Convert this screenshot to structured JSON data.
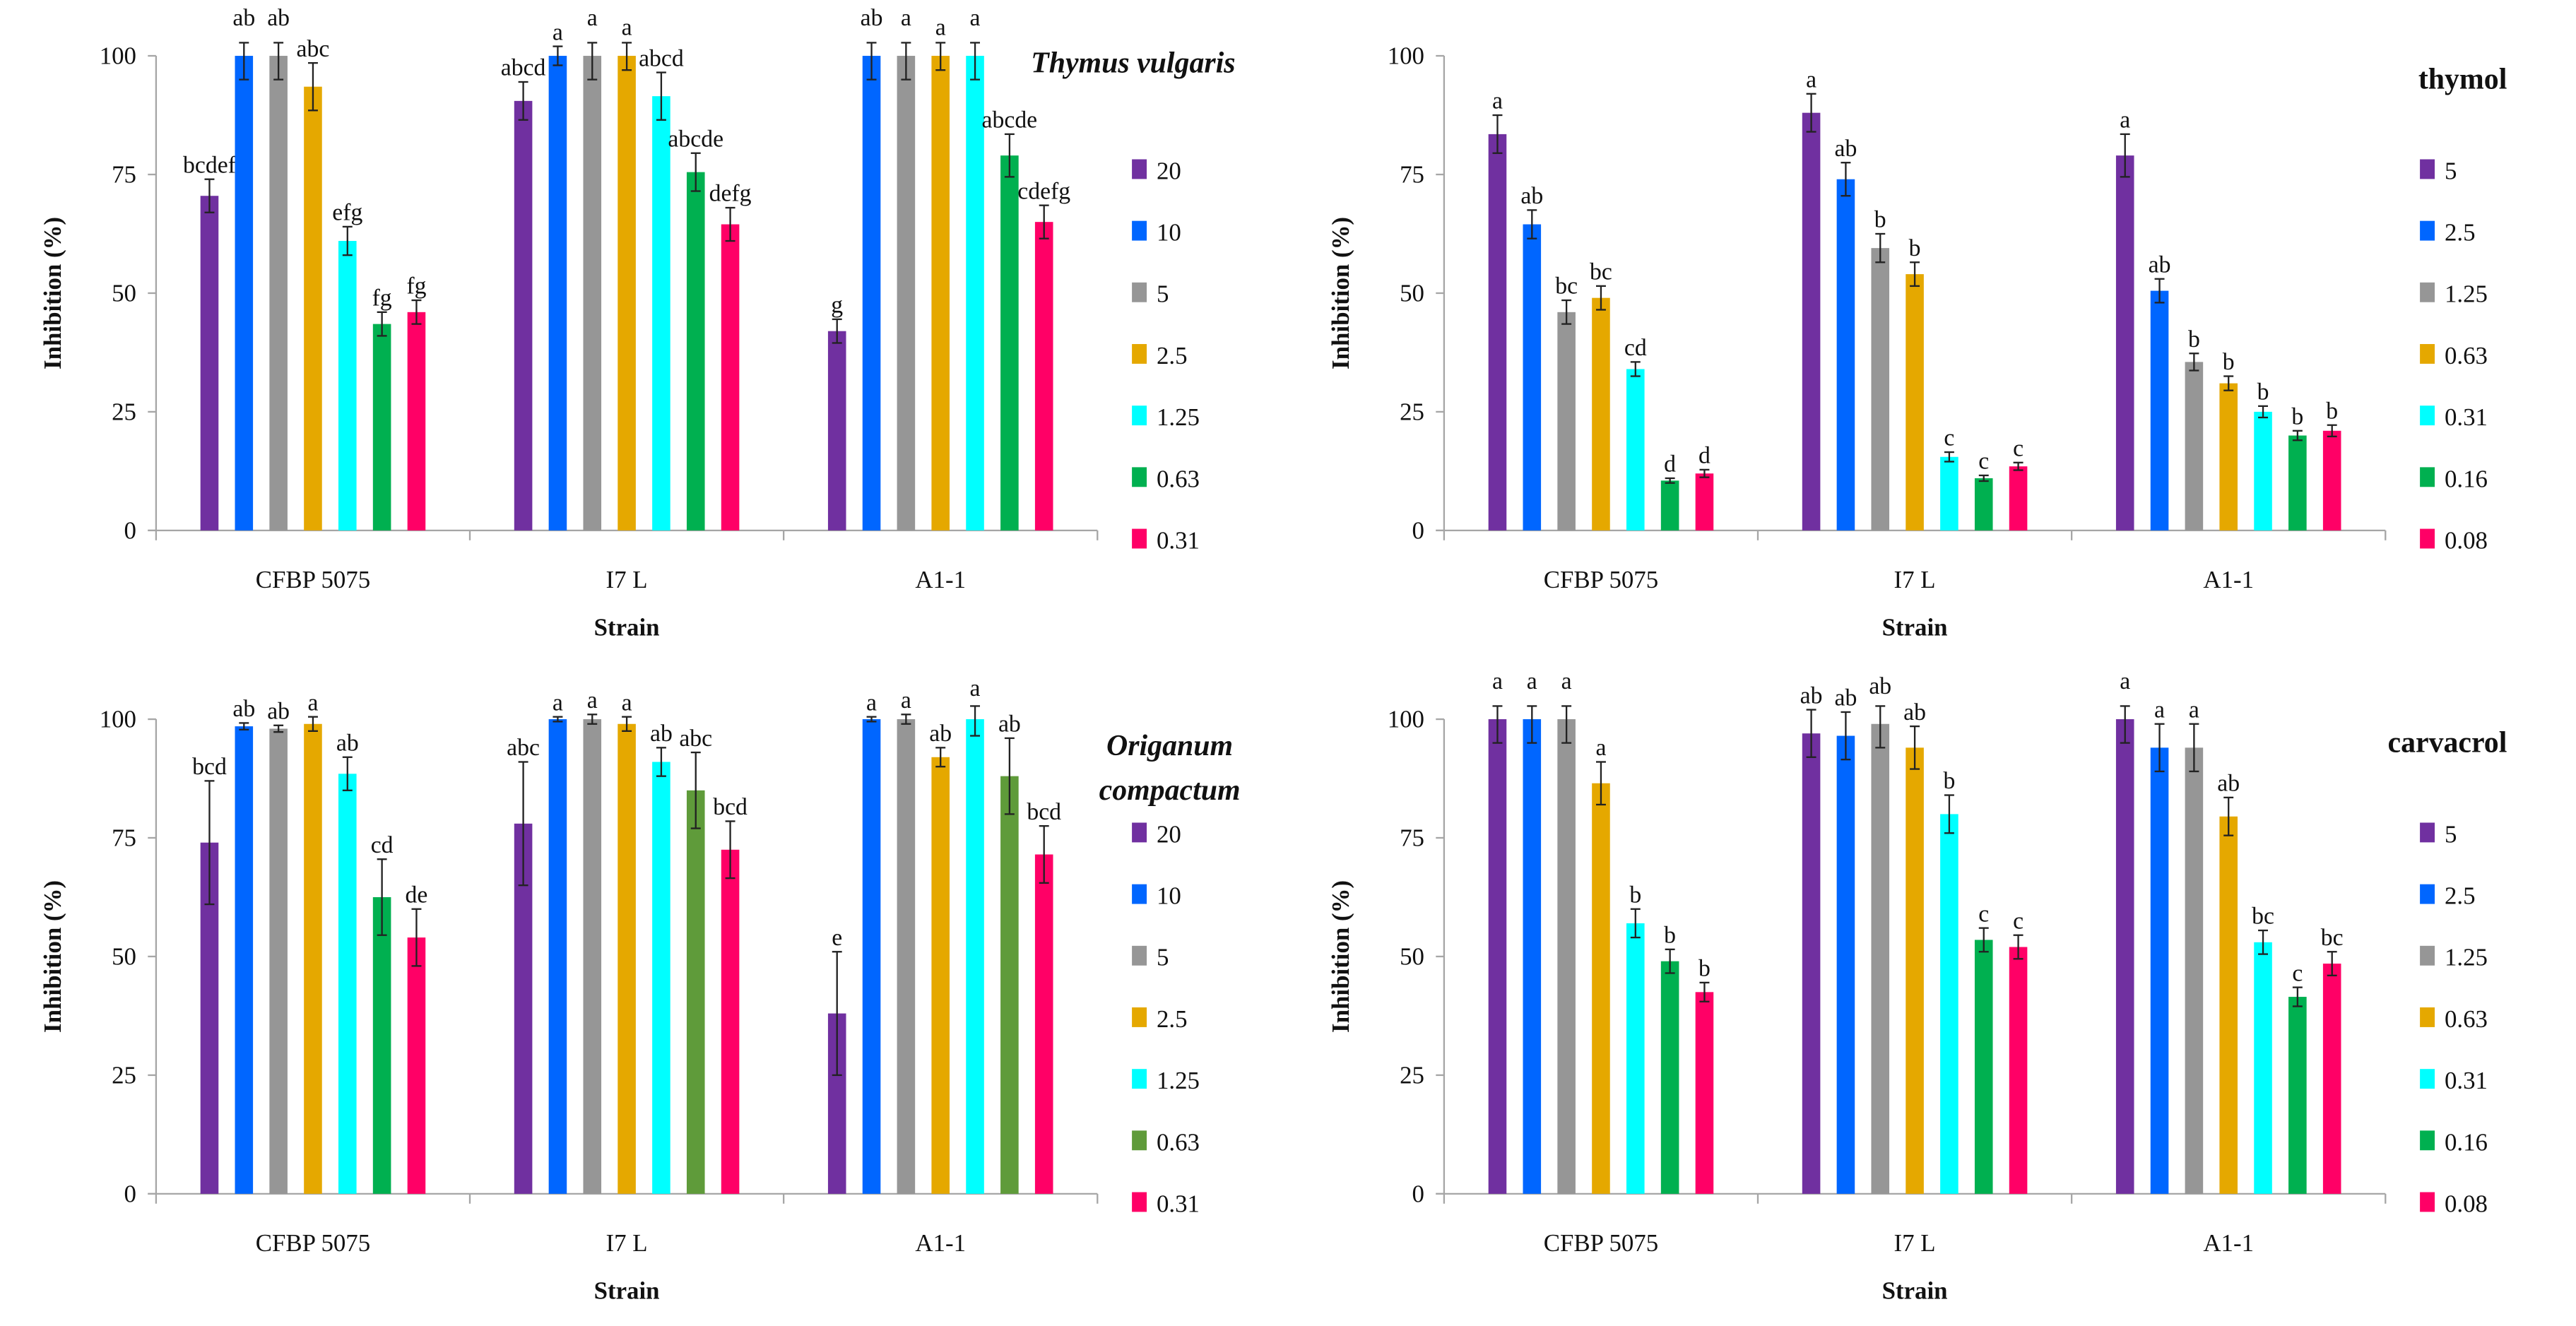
{
  "chart_data": [
    {
      "type": "bar",
      "title": "Thymus vulgaris",
      "title_lines": [
        "Thymus vulgaris"
      ],
      "title_italic": true,
      "xlabel": "Strain",
      "ylabel": "Inhibition (%)",
      "ylim": [
        0,
        100
      ],
      "yticks": [
        0,
        25,
        50,
        75,
        100
      ],
      "legend_placement": "right",
      "categories": [
        "CFBP 5075",
        "I7 L",
        "A1-1"
      ],
      "series": [
        {
          "name": "20",
          "color": "#7030a0",
          "values": [
            70.5,
            90.5,
            42
          ],
          "errors": [
            3.5,
            4,
            2.5
          ],
          "letters": [
            "bcdef",
            "abcd",
            "g"
          ]
        },
        {
          "name": "10",
          "color": "#0066ff",
          "values": [
            100,
            100,
            100
          ],
          "errors": [
            5,
            2,
            5
          ],
          "letters": [
            "ab",
            "a",
            "ab"
          ]
        },
        {
          "name": "5",
          "color": "#969696",
          "values": [
            100,
            100,
            100
          ],
          "errors": [
            5,
            5,
            5
          ],
          "letters": [
            "ab",
            "a",
            "a"
          ]
        },
        {
          "name": "2.5",
          "color": "#e5a800",
          "values": [
            93.5,
            100,
            100
          ],
          "errors": [
            5,
            3,
            3
          ],
          "letters": [
            "abc",
            "a",
            "a"
          ]
        },
        {
          "name": "1.25",
          "color": "#00ffff",
          "values": [
            61,
            91.5,
            100
          ],
          "errors": [
            3,
            5,
            5
          ],
          "letters": [
            "efg",
            "abcd",
            "a"
          ]
        },
        {
          "name": "0.63",
          "color": "#00b050",
          "values": [
            43.5,
            75.5,
            79
          ],
          "errors": [
            2.5,
            4,
            4.5
          ],
          "letters": [
            "fg",
            "abcde",
            "abcde"
          ]
        },
        {
          "name": "0.31",
          "color": "#ff0066",
          "values": [
            46,
            64.5,
            65
          ],
          "errors": [
            2.5,
            3.5,
            3.5
          ],
          "letters": [
            "fg",
            "defg",
            "cdefg"
          ]
        }
      ]
    },
    {
      "type": "bar",
      "title": "thymol",
      "title_lines": [
        "thymol"
      ],
      "title_italic": false,
      "xlabel": "Strain",
      "ylabel": "Inhibition (%)",
      "ylim": [
        0,
        100
      ],
      "yticks": [
        0,
        25,
        50,
        75,
        100
      ],
      "legend_placement": "right",
      "categories": [
        "CFBP 5075",
        "I7 L",
        "A1-1"
      ],
      "series": [
        {
          "name": "5",
          "color": "#7030a0",
          "values": [
            83.5,
            88,
            79
          ],
          "errors": [
            4,
            4,
            4.5
          ],
          "letters": [
            "a",
            "a",
            "a"
          ]
        },
        {
          "name": "2.5",
          "color": "#0066ff",
          "values": [
            64.5,
            74,
            50.5
          ],
          "errors": [
            3,
            3.5,
            2.5
          ],
          "letters": [
            "ab",
            "ab",
            "ab"
          ]
        },
        {
          "name": "1.25",
          "color": "#969696",
          "values": [
            46,
            59.5,
            35.5
          ],
          "errors": [
            2.5,
            3,
            1.8
          ],
          "letters": [
            "bc",
            "b",
            "b"
          ]
        },
        {
          "name": "0.63",
          "color": "#e5a800",
          "values": [
            49,
            54,
            31
          ],
          "errors": [
            2.5,
            2.5,
            1.5
          ],
          "letters": [
            "bc",
            "b",
            "b"
          ]
        },
        {
          "name": "0.31",
          "color": "#00ffff",
          "values": [
            34,
            15.5,
            25
          ],
          "errors": [
            1.5,
            1,
            1.2
          ],
          "letters": [
            "cd",
            "c",
            "b"
          ]
        },
        {
          "name": "0.16",
          "color": "#00b050",
          "values": [
            10.5,
            11,
            20
          ],
          "errors": [
            0.5,
            0.6,
            1
          ],
          "letters": [
            "d",
            "c",
            "b"
          ]
        },
        {
          "name": "0.08",
          "color": "#ff0066",
          "values": [
            12,
            13.5,
            21
          ],
          "errors": [
            0.8,
            0.8,
            1.2
          ],
          "letters": [
            "d",
            "c",
            "b"
          ]
        }
      ]
    },
    {
      "type": "bar",
      "title": "Origanum compactum",
      "title_lines": [
        "Origanum",
        "compactum"
      ],
      "title_italic": true,
      "xlabel": "Strain",
      "ylabel": "Inhibition (%)",
      "ylim": [
        0,
        100
      ],
      "yticks": [
        0,
        25,
        50,
        75,
        100
      ],
      "legend_placement": "right",
      "categories": [
        "CFBP 5075",
        "I7 L",
        "A1-1"
      ],
      "series": [
        {
          "name": "20",
          "color": "#7030a0",
          "values": [
            74,
            78,
            38
          ],
          "errors": [
            13,
            13,
            13
          ],
          "letters": [
            "bcd",
            "abc",
            "e"
          ]
        },
        {
          "name": "10",
          "color": "#0066ff",
          "values": [
            98.5,
            100,
            100
          ],
          "errors": [
            0.7,
            0.5,
            0.5
          ],
          "letters": [
            "ab",
            "a",
            "a"
          ]
        },
        {
          "name": "5",
          "color": "#969696",
          "values": [
            98,
            100,
            100
          ],
          "errors": [
            0.7,
            1,
            1
          ],
          "letters": [
            "ab",
            "a",
            "a"
          ]
        },
        {
          "name": "2.5",
          "color": "#e5a800",
          "values": [
            99,
            99,
            92
          ],
          "errors": [
            1.5,
            1.5,
            2
          ],
          "letters": [
            "a",
            "a",
            "ab"
          ]
        },
        {
          "name": "1.25",
          "color": "#00ffff",
          "values": [
            88.5,
            91,
            100
          ],
          "errors": [
            3.5,
            3,
            3.5
          ],
          "letters": [
            "ab",
            "ab",
            "a"
          ]
        },
        {
          "name": "0.63",
          "color": "#5f9b3a",
          "point_colors": [
            "#00b050",
            "#5f9b3a",
            "#5f9b3a"
          ],
          "values": [
            62.5,
            85,
            88
          ],
          "errors": [
            8,
            8,
            8
          ],
          "letters": [
            "cd",
            "abc",
            "ab"
          ]
        },
        {
          "name": "0.31",
          "color": "#ff0066",
          "values": [
            54,
            72.5,
            71.5
          ],
          "errors": [
            6,
            6,
            6
          ],
          "letters": [
            "de",
            "bcd",
            "bcd"
          ]
        }
      ]
    },
    {
      "type": "bar",
      "title": "carvacrol",
      "title_lines": [
        "carvacrol"
      ],
      "title_italic": false,
      "xlabel": "Strain",
      "ylabel": "Inhibition (%)",
      "ylim": [
        0,
        100
      ],
      "yticks": [
        0,
        25,
        50,
        75,
        100
      ],
      "legend_placement": "right",
      "categories": [
        "CFBP 5075",
        "I7 L",
        "A1-1"
      ],
      "series": [
        {
          "name": "5",
          "color": "#7030a0",
          "values": [
            100,
            97,
            100
          ],
          "errors": [
            5,
            5,
            5
          ],
          "letters": [
            "a",
            "ab",
            "a"
          ]
        },
        {
          "name": "2.5",
          "color": "#0066ff",
          "values": [
            100,
            96.5,
            94
          ],
          "errors": [
            5,
            5,
            5
          ],
          "letters": [
            "a",
            "ab",
            "a"
          ]
        },
        {
          "name": "1.25",
          "color": "#969696",
          "values": [
            100,
            99,
            94
          ],
          "errors": [
            5,
            5,
            5
          ],
          "letters": [
            "a",
            "ab",
            "a"
          ]
        },
        {
          "name": "0.63",
          "color": "#e5a800",
          "values": [
            86.5,
            94,
            79.5
          ],
          "errors": [
            4.5,
            4.5,
            4
          ],
          "letters": [
            "a",
            "ab",
            "ab"
          ]
        },
        {
          "name": "0.31",
          "color": "#00ffff",
          "values": [
            57,
            80,
            53
          ],
          "errors": [
            3,
            4,
            2.5
          ],
          "letters": [
            "b",
            "b",
            "bc"
          ]
        },
        {
          "name": "0.16",
          "color": "#00b050",
          "values": [
            49,
            53.5,
            41.5
          ],
          "errors": [
            2.5,
            2.5,
            2
          ],
          "letters": [
            "b",
            "c",
            "c"
          ]
        },
        {
          "name": "0.08",
          "color": "#ff0066",
          "values": [
            42.5,
            52,
            48.5
          ],
          "errors": [
            2,
            2.5,
            2.5
          ],
          "letters": [
            "b",
            "c",
            "bc"
          ]
        }
      ]
    }
  ]
}
